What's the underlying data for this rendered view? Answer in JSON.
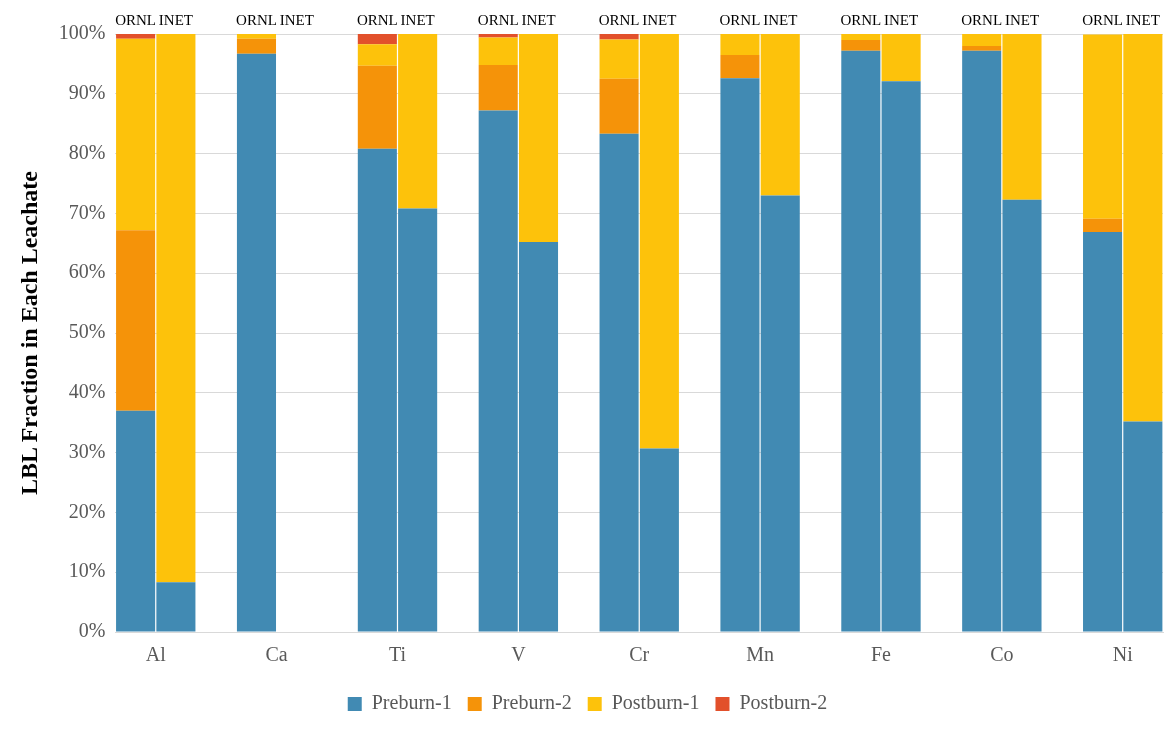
{
  "chart_data": {
    "type": "bar",
    "stacked": true,
    "ylabel": "LBL Fraction in Each Leachate",
    "categories": [
      "ORNL",
      "INET",
      null,
      "ORNL",
      "INET",
      null,
      "ORNL",
      "INET",
      null,
      "ORNL",
      "INET",
      null,
      "ORNL",
      "INET",
      null,
      "ORNL",
      "INET",
      null,
      "ORNL",
      "INET",
      null,
      "ORNL",
      "INET",
      null,
      "ORNL",
      "INET"
    ],
    "annotations": [
      "Al",
      "Ca",
      "Ti",
      "V",
      "Cr",
      "Mn",
      "Fe",
      "Co",
      "Ni"
    ],
    "series": [
      {
        "name": "Preburn-1",
        "color": "#418ab3",
        "values": [
          37,
          8.3,
          null,
          96.7,
          null,
          null,
          80.8,
          70.8,
          null,
          87.2,
          65.2,
          null,
          83.3,
          30.7,
          null,
          92.6,
          73,
          null,
          97.2,
          92.1,
          null,
          97.2,
          72.3,
          null,
          66.9,
          35.2
        ]
      },
      {
        "name": "Preburn-2",
        "color": "#f59309",
        "values": [
          30.2,
          null,
          null,
          2.5,
          null,
          null,
          13.9,
          null,
          null,
          7.6,
          null,
          null,
          9.2,
          null,
          null,
          3.9,
          null,
          null,
          1.8,
          null,
          null,
          0.8,
          null,
          null,
          2.2,
          null
        ]
      },
      {
        "name": "Postburn-1",
        "color": "#fdc20b",
        "values": [
          32,
          91.7,
          null,
          0.8,
          null,
          null,
          3.6,
          29.2,
          null,
          4.6,
          34.8,
          null,
          6.6,
          69.3,
          null,
          3.5,
          27,
          null,
          1,
          7.9,
          null,
          2,
          27.7,
          null,
          30.8,
          64.8
        ]
      },
      {
        "name": "Postburn-2",
        "color": "#e2502b",
        "values": [
          0.8,
          null,
          null,
          null,
          null,
          null,
          1.7,
          null,
          null,
          0.6,
          null,
          null,
          0.9,
          null,
          null,
          null,
          null,
          null,
          null,
          null,
          null,
          null,
          null,
          null,
          null,
          null
        ]
      }
    ],
    "ylim": [
      0,
      100
    ],
    "yticks": [
      {
        "value": 0,
        "label": "0%"
      },
      {
        "value": 10,
        "label": "10%"
      },
      {
        "value": 20,
        "label": "20%"
      },
      {
        "value": 30,
        "label": "30%"
      },
      {
        "value": 40,
        "label": "40%"
      },
      {
        "value": 50,
        "label": "50%"
      },
      {
        "value": 60,
        "label": "60%"
      },
      {
        "value": 70,
        "label": "70%"
      },
      {
        "value": 80,
        "label": "80%"
      },
      {
        "value": 90,
        "label": "90%"
      },
      {
        "value": 100,
        "label": "100%"
      }
    ],
    "grid": "y",
    "legend": "bottom"
  }
}
